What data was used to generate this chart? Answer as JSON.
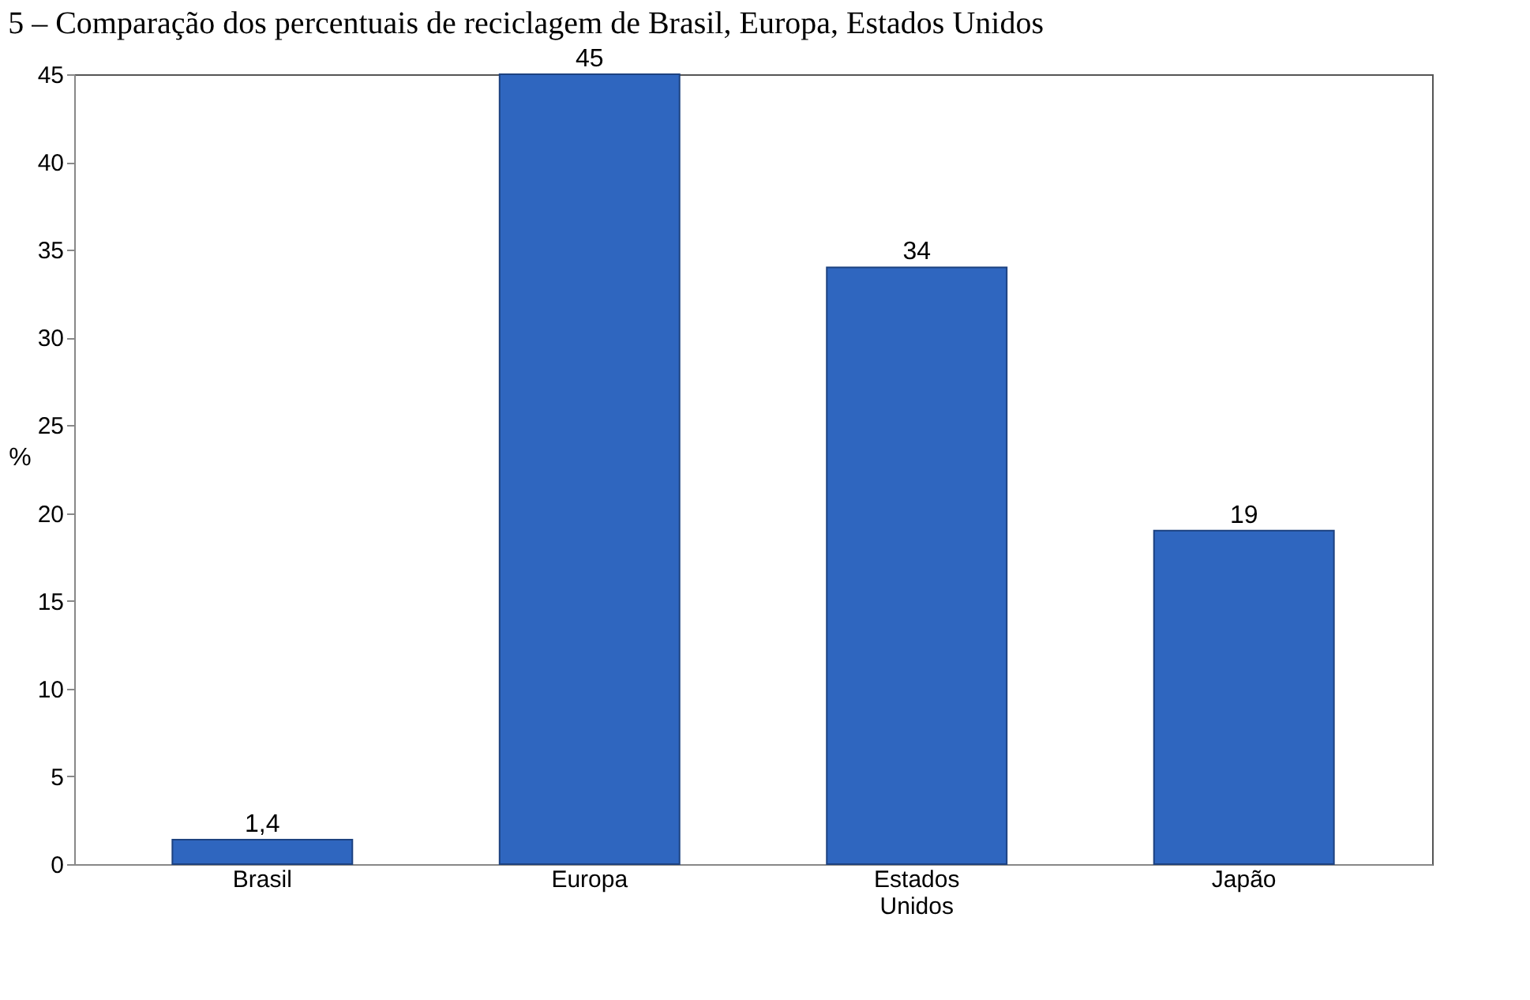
{
  "chart_data": {
    "type": "bar",
    "title": "5 – Comparação dos percentuais de reciclagem de Brasil, Europa, Estados Unidos",
    "ylabel": "%",
    "categories": [
      "Brasil",
      "Europa",
      "Estados Unidos",
      "Japão"
    ],
    "values": [
      1.4,
      45,
      34,
      19
    ],
    "value_labels": [
      "1,4",
      "45",
      "34",
      "19"
    ],
    "color": "#2f66bf",
    "ylim": [
      0,
      45
    ],
    "yticks": [
      0,
      5,
      10,
      15,
      20,
      25,
      30,
      35,
      40,
      45
    ],
    "grid": false
  }
}
